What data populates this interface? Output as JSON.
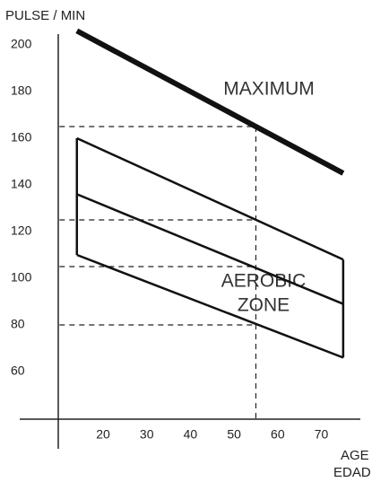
{
  "chart_data": {
    "type": "line",
    "y_label": "PULSE / MIN",
    "x_label": "AGE",
    "x_label_2": "EDAD",
    "annotations": [
      "MAXIMUM",
      "AEROBIC",
      "ZONE"
    ],
    "x": [
      14,
      75
    ],
    "series": [
      {
        "color": "#111111",
        "line_width": 6,
        "values": [
          206,
          145
        ]
      },
      {
        "color": "#111111",
        "line_width": 2.5,
        "values": [
          160,
          108
        ]
      },
      {
        "color": "#111111",
        "line_width": 2.5,
        "values": [
          136,
          89
        ]
      },
      {
        "color": "#111111",
        "line_width": 2.5,
        "values": [
          110,
          66
        ]
      }
    ],
    "reference_x": 55,
    "reference_y": [
      165,
      125,
      105,
      80
    ],
    "xlim": [
      10,
      78
    ],
    "ylim": [
      40,
      204
    ],
    "xticks": [
      20,
      30,
      40,
      50,
      60,
      70
    ],
    "yticks": [
      60,
      80,
      100,
      120,
      140,
      160,
      180,
      200
    ]
  }
}
